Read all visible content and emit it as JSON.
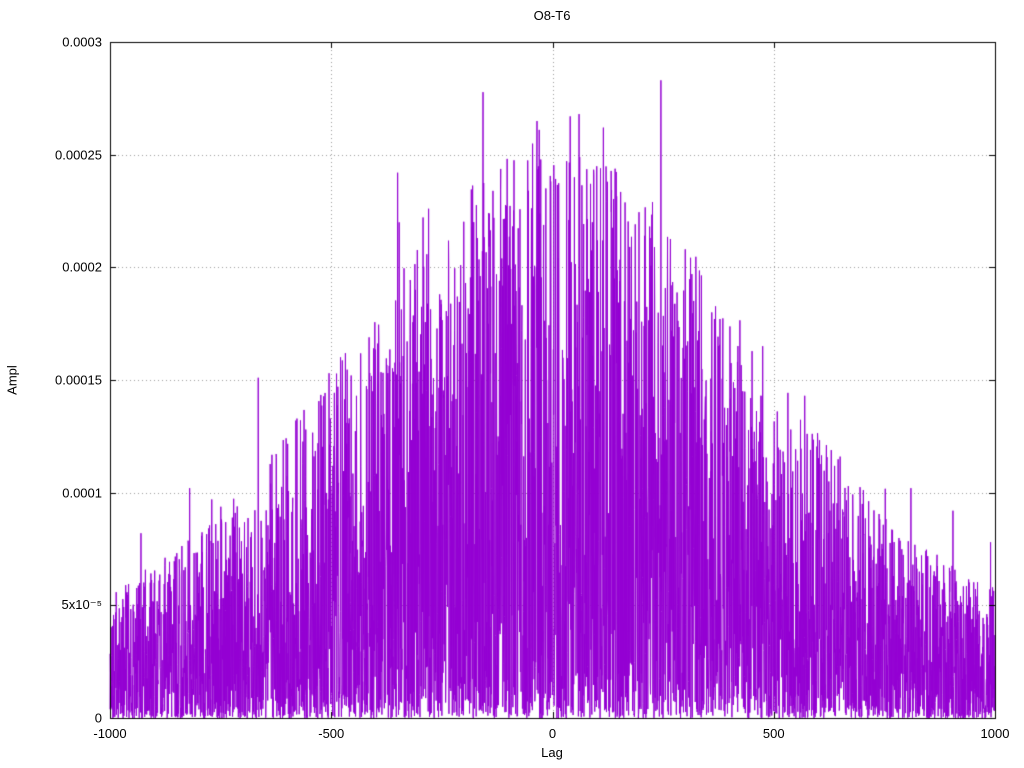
{
  "chart_data": {
    "type": "line",
    "title": "O8-T6",
    "xlabel": "Lag",
    "ylabel": "Ampl",
    "xlim": [
      -1000,
      1000
    ],
    "ylim": [
      0,
      0.0003
    ],
    "grid": true,
    "legend": "none",
    "line_color": "#9400d3",
    "grid_color": "#9a9a9a",
    "border_color": "#000000",
    "background_color": "#ffffff",
    "x_ticks": [
      {
        "v": -1000,
        "label": "-1000"
      },
      {
        "v": -500,
        "label": "-500"
      },
      {
        "v": 0,
        "label": "0"
      },
      {
        "v": 500,
        "label": "500"
      },
      {
        "v": 1000,
        "label": "1000"
      }
    ],
    "y_ticks": [
      {
        "v": 0.0,
        "label": "0"
      },
      {
        "v": 5e-05,
        "label": "5x10⁻⁵"
      },
      {
        "v": 0.0001,
        "label": "0.0001"
      },
      {
        "v": 0.00015,
        "label": "0.00015"
      },
      {
        "v": 0.0002,
        "label": "0.0002"
      },
      {
        "v": 0.00025,
        "label": "0.00025"
      },
      {
        "v": 0.0003,
        "label": "0.0003"
      }
    ],
    "series_spec": {
      "description": "Dense positive noisy spike train (amplitude vs lag), envelope peaks near lag 0 and decays toward the edges",
      "x_min": -1000,
      "x_max": 1000,
      "x_step": 0.5,
      "seed": 1337,
      "envelope": {
        "base": 4e-05,
        "peak": 0.000215,
        "sigma": 632
      },
      "noise_power": 1.6,
      "spike_probability": 0.004
    },
    "notable_peaks": [
      [
        -930,
        8.2e-05
      ],
      [
        -820,
        0.000102
      ],
      [
        -770,
        9.7e-05
      ],
      [
        -665,
        0.000151
      ],
      [
        -580,
        0.000132
      ],
      [
        -505,
        0.000153
      ],
      [
        -455,
        0.000152
      ],
      [
        -350,
        0.000242
      ],
      [
        -310,
        0.00019
      ],
      [
        -280,
        0.000226
      ],
      [
        -255,
        0.000188
      ],
      [
        -215,
        0.000187
      ],
      [
        -170,
        0.000213
      ],
      [
        -120,
        0.000194
      ],
      [
        -75,
        0.000191
      ],
      [
        -30,
        0.000261
      ],
      [
        -15,
        0.000235
      ],
      [
        40,
        0.000267
      ],
      [
        60,
        0.000268
      ],
      [
        90,
        0.00022
      ],
      [
        115,
        0.000262
      ],
      [
        140,
        0.000195
      ],
      [
        180,
        0.000152
      ],
      [
        245,
        0.000283
      ],
      [
        270,
        0.000192
      ],
      [
        300,
        0.000208
      ],
      [
        315,
        0.000197
      ],
      [
        360,
        0.00018
      ],
      [
        375,
        0.000165
      ],
      [
        430,
        0.000145
      ],
      [
        475,
        0.000165
      ],
      [
        510,
        0.00012
      ],
      [
        570,
        0.000143
      ],
      [
        650,
        0.000116
      ],
      [
        700,
        9.5e-05
      ],
      [
        810,
        0.000102
      ],
      [
        905,
        9.2e-05
      ],
      [
        990,
        7.8e-05
      ]
    ]
  }
}
